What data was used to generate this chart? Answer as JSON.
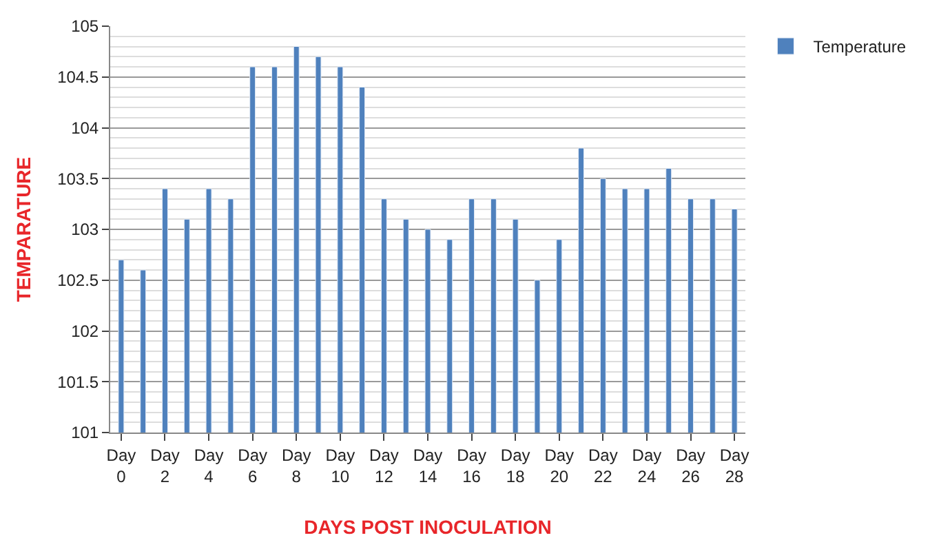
{
  "chart_data": {
    "type": "bar",
    "xlabel": "DAYS POST INOCULATION",
    "ylabel": "TEMPARATURE",
    "categories": [
      "Day 0",
      null,
      "Day 2",
      null,
      "Day 4",
      null,
      "Day 6",
      null,
      "Day 8",
      null,
      "Day 10",
      null,
      "Day 12",
      null,
      "Day 14",
      null,
      "Day 16",
      null,
      "Day 18",
      null,
      "Day 20",
      null,
      "Day 22",
      null,
      "Day 24",
      null,
      "Day 26",
      null,
      "Day 28"
    ],
    "series": [
      {
        "name": "Temperature",
        "color": "#4f81bd",
        "values": [
          102.7,
          102.6,
          103.4,
          103.1,
          103.4,
          103.3,
          104.6,
          104.6,
          104.8,
          104.7,
          104.6,
          104.4,
          103.3,
          103.1,
          103.0,
          102.9,
          103.3,
          103.3,
          103.1,
          102.5,
          102.9,
          103.8,
          103.5,
          103.4,
          103.4,
          103.6,
          103.3,
          103.3,
          103.2
        ]
      }
    ],
    "ylim": [
      101,
      105
    ],
    "yticks": [
      101,
      101.5,
      102,
      102.5,
      103,
      103.5,
      104,
      104.5,
      105
    ],
    "grid": "y",
    "legend": "top right"
  }
}
